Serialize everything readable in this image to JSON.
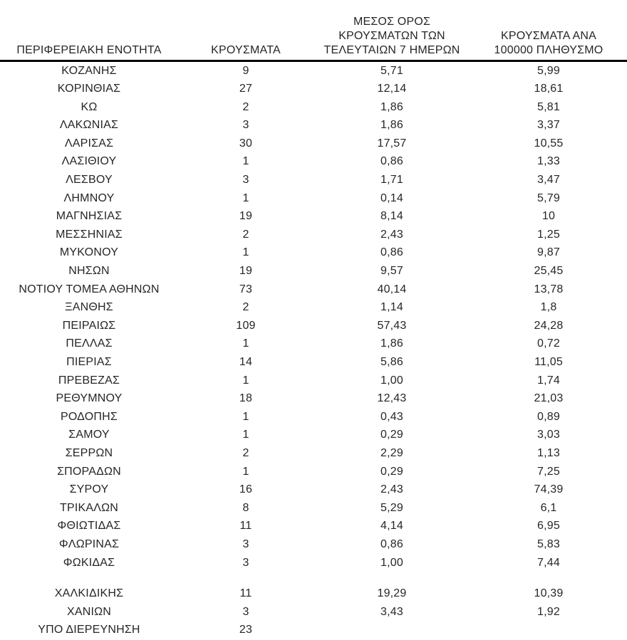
{
  "colors": {
    "background": "#ffffff",
    "text": "#262626",
    "header_rule": "#000000"
  },
  "table": {
    "header": {
      "col1_lines": [
        "ΠΕΡΙΦΕΡΕΙΑΚΗ ΕΝΟΤΗΤΑ"
      ],
      "col2_lines": [
        "ΚΡΟΥΣΜΑΤΑ"
      ],
      "col3_lines": [
        "ΜΕΣΟΣ ΟΡΟΣ",
        "ΚΡΟΥΣΜΑΤΩΝ ΤΩΝ",
        "ΤΕΛΕΥΤΑΙΩΝ 7 ΗΜΕΡΩΝ"
      ],
      "col4_lines": [
        "ΚΡΟΥΣΜΑΤΑ ΑΝΑ",
        "100000 ΠΛΗΘΥΣΜΟ"
      ]
    },
    "rows": [
      {
        "region": "ΚΟΖΑΝΗΣ",
        "cases": "9",
        "avg7": "5,71",
        "per100k": "5,99"
      },
      {
        "region": "ΚΟΡΙΝΘΙΑΣ",
        "cases": "27",
        "avg7": "12,14",
        "per100k": "18,61"
      },
      {
        "region": "ΚΩ",
        "cases": "2",
        "avg7": "1,86",
        "per100k": "5,81"
      },
      {
        "region": "ΛΑΚΩΝΙΑΣ",
        "cases": "3",
        "avg7": "1,86",
        "per100k": "3,37"
      },
      {
        "region": "ΛΑΡΙΣΑΣ",
        "cases": "30",
        "avg7": "17,57",
        "per100k": "10,55"
      },
      {
        "region": "ΛΑΣΙΘΙΟΥ",
        "cases": "1",
        "avg7": "0,86",
        "per100k": "1,33"
      },
      {
        "region": "ΛΕΣΒΟΥ",
        "cases": "3",
        "avg7": "1,71",
        "per100k": "3,47"
      },
      {
        "region": "ΛΗΜΝΟΥ",
        "cases": "1",
        "avg7": "0,14",
        "per100k": "5,79"
      },
      {
        "region": "ΜΑΓΝΗΣΙΑΣ",
        "cases": "19",
        "avg7": "8,14",
        "per100k": "10"
      },
      {
        "region": "ΜΕΣΣΗΝΙΑΣ",
        "cases": "2",
        "avg7": "2,43",
        "per100k": "1,25"
      },
      {
        "region": "ΜΥΚΟΝΟΥ",
        "cases": "1",
        "avg7": "0,86",
        "per100k": "9,87"
      },
      {
        "region": "ΝΗΣΩΝ",
        "cases": "19",
        "avg7": "9,57",
        "per100k": "25,45"
      },
      {
        "region": "ΝΟΤΙΟΥ ΤΟΜΕΑ ΑΘΗΝΩΝ",
        "cases": "73",
        "avg7": "40,14",
        "per100k": "13,78"
      },
      {
        "region": "ΞΑΝΘΗΣ",
        "cases": "2",
        "avg7": "1,14",
        "per100k": "1,8"
      },
      {
        "region": "ΠΕΙΡΑΙΩΣ",
        "cases": "109",
        "avg7": "57,43",
        "per100k": "24,28"
      },
      {
        "region": "ΠΕΛΛΑΣ",
        "cases": "1",
        "avg7": "1,86",
        "per100k": "0,72"
      },
      {
        "region": "ΠΙΕΡΙΑΣ",
        "cases": "14",
        "avg7": "5,86",
        "per100k": "11,05"
      },
      {
        "region": "ΠΡΕΒΕΖΑΣ",
        "cases": "1",
        "avg7": "1,00",
        "per100k": "1,74"
      },
      {
        "region": "ΡΕΘΥΜΝΟΥ",
        "cases": "18",
        "avg7": "12,43",
        "per100k": "21,03"
      },
      {
        "region": "ΡΟΔΟΠΗΣ",
        "cases": "1",
        "avg7": "0,43",
        "per100k": "0,89"
      },
      {
        "region": "ΣΑΜΟΥ",
        "cases": "1",
        "avg7": "0,29",
        "per100k": "3,03"
      },
      {
        "region": "ΣΕΡΡΩΝ",
        "cases": "2",
        "avg7": "2,29",
        "per100k": "1,13"
      },
      {
        "region": "ΣΠΟΡΑΔΩΝ",
        "cases": "1",
        "avg7": "0,29",
        "per100k": "7,25"
      },
      {
        "region": "ΣΥΡΟΥ",
        "cases": "16",
        "avg7": "2,43",
        "per100k": "74,39"
      },
      {
        "region": "ΤΡΙΚΑΛΩΝ",
        "cases": "8",
        "avg7": "5,29",
        "per100k": "6,1"
      },
      {
        "region": "ΦΘΙΩΤΙΔΑΣ",
        "cases": "11",
        "avg7": "4,14",
        "per100k": "6,95"
      },
      {
        "region": "ΦΛΩΡΙΝΑΣ",
        "cases": "3",
        "avg7": "0,86",
        "per100k": "5,83"
      },
      {
        "region": "ΦΩΚΙΔΑΣ",
        "cases": "3",
        "avg7": "1,00",
        "per100k": "7,44"
      },
      {
        "spacer": true
      },
      {
        "region": "ΧΑΛΚΙΔΙΚΗΣ",
        "cases": "11",
        "avg7": "19,29",
        "per100k": "10,39"
      },
      {
        "region": "ΧΑΝΙΩΝ",
        "cases": "3",
        "avg7": "3,43",
        "per100k": "1,92"
      },
      {
        "region": "ΥΠΟ ΔΙΕΡΕΥΝΗΣΗ",
        "cases": "23",
        "avg7": "",
        "per100k": ""
      }
    ]
  }
}
